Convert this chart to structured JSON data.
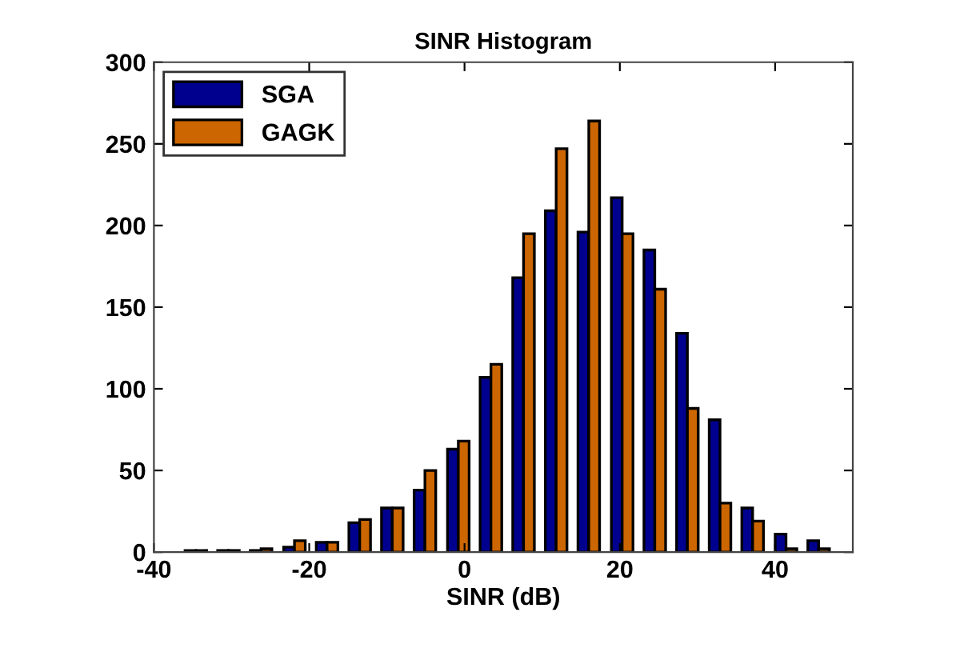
{
  "chart_data": {
    "type": "bar",
    "title": "SINR Histogram",
    "xlabel": "SINR (dB)",
    "x": [
      -34.6,
      -30.4,
      -26.2,
      -21.9,
      -17.7,
      -13.5,
      -9.3,
      -5.1,
      -0.8,
      3.4,
      7.6,
      11.8,
      16.0,
      20.3,
      24.5,
      28.7,
      32.9,
      37.1,
      41.4,
      45.6
    ],
    "series": [
      {
        "name": "SGA",
        "color": "#00008f",
        "values": [
          1,
          1,
          1,
          3,
          6,
          18,
          27,
          38,
          63,
          107,
          168,
          209,
          196,
          217,
          185,
          134,
          81,
          27,
          11,
          7
        ]
      },
      {
        "name": "GAGK",
        "color": "#cc6600",
        "values": [
          1,
          1,
          2,
          7,
          6,
          20,
          27,
          50,
          68,
          115,
          195,
          247,
          264,
          195,
          161,
          88,
          30,
          19,
          2,
          2
        ]
      }
    ],
    "xlim": [
      -40,
      50
    ],
    "xticks": [
      -40,
      -20,
      0,
      20,
      40
    ],
    "ylim": [
      0,
      300
    ],
    "yticks": [
      0,
      50,
      100,
      150,
      200,
      250,
      300
    ],
    "grid": false,
    "legend": "top left"
  }
}
